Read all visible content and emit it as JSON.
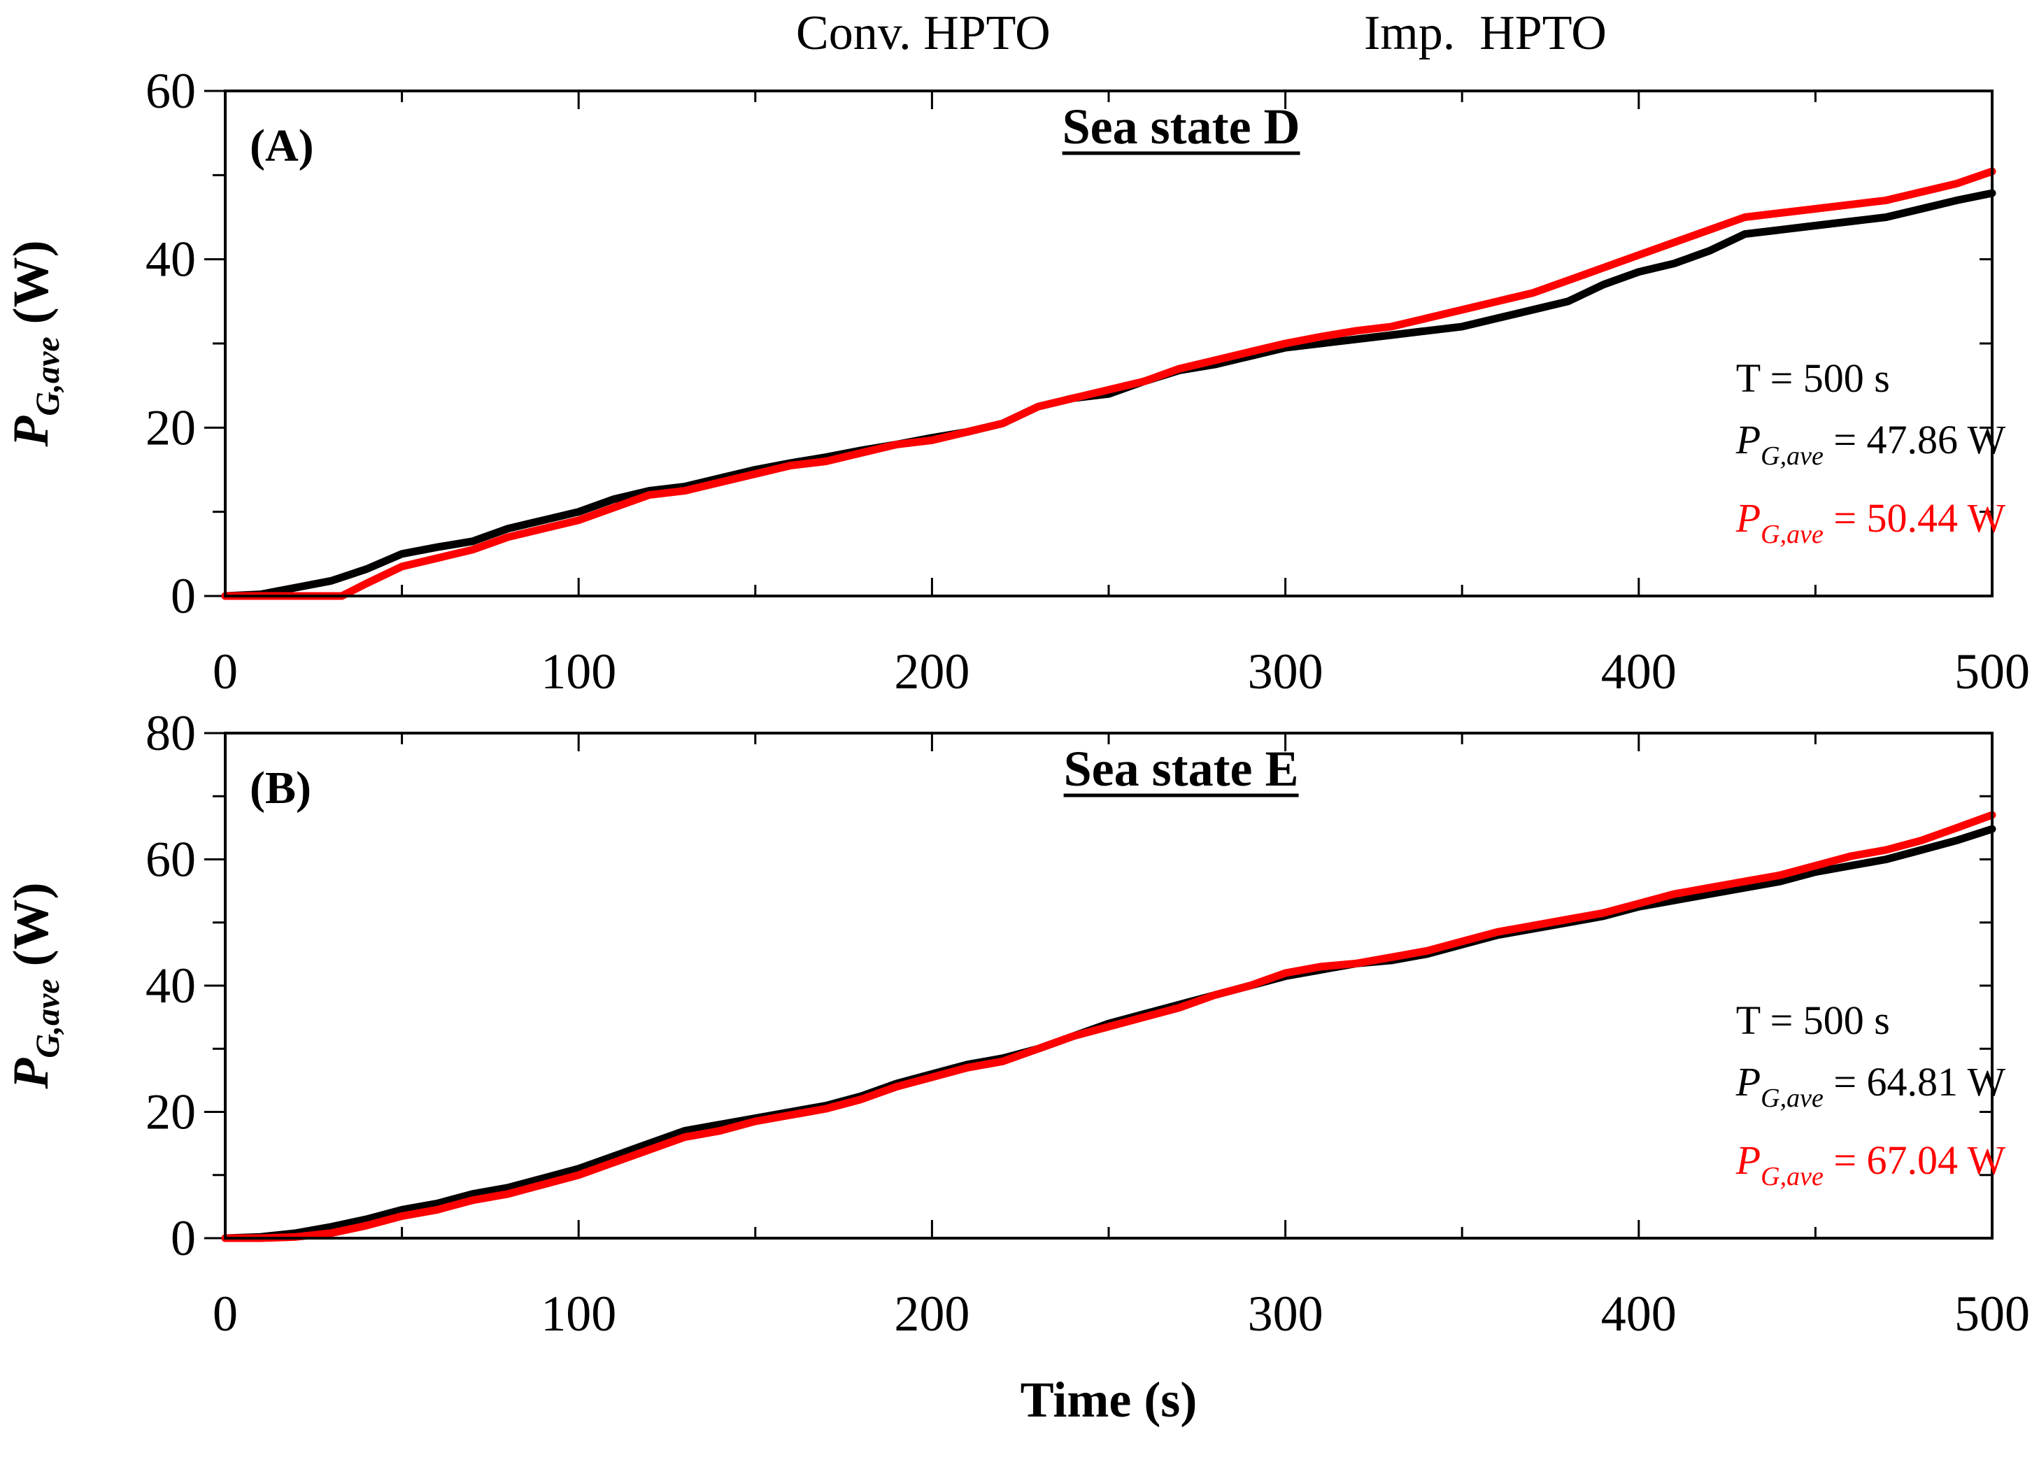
{
  "legend": {
    "conv_label": "Conv. HPTO",
    "imp_label": "Imp.  HPTO"
  },
  "colors": {
    "conv": "#000000",
    "imp": "#ff0000"
  },
  "shared": {
    "xlabel": "Time (s)",
    "ylabel_main": "P",
    "ylabel_sub": "G,ave",
    "ylabel_unit": " (W)"
  },
  "chart_data": [
    {
      "type": "line",
      "panel_label": "(A)",
      "title": "Sea state D",
      "xlim": [
        0,
        500
      ],
      "ylim": [
        0,
        60
      ],
      "xticks": [
        0,
        100,
        200,
        300,
        400,
        500
      ],
      "yticks": [
        0,
        20,
        40,
        60
      ],
      "annotation": {
        "period": "T = 500 s",
        "conv_symbol": "P",
        "conv_sub": "G,ave",
        "conv_value": " = 47.86 W",
        "imp_symbol": "P",
        "imp_sub": "G,ave",
        "imp_value": " = 50.44 W"
      },
      "series": [
        {
          "name": "Conv. HPTO",
          "x": [
            0,
            10,
            20,
            30,
            40,
            50,
            60,
            70,
            80,
            90,
            100,
            110,
            120,
            130,
            140,
            150,
            160,
            170,
            180,
            190,
            200,
            210,
            220,
            230,
            240,
            250,
            260,
            270,
            280,
            290,
            300,
            310,
            320,
            330,
            340,
            350,
            360,
            370,
            380,
            390,
            400,
            410,
            420,
            430,
            440,
            450,
            460,
            470,
            480,
            490,
            500
          ],
          "values": [
            0,
            0.2,
            1.0,
            1.8,
            3.2,
            5.0,
            5.8,
            6.5,
            8.0,
            9.0,
            10.0,
            11.5,
            12.5,
            13.0,
            14.0,
            15.0,
            15.8,
            16.5,
            17.3,
            18.0,
            18.8,
            19.5,
            20.5,
            22.5,
            23.5,
            24.0,
            25.5,
            26.8,
            27.5,
            28.5,
            29.5,
            30.0,
            30.5,
            31.0,
            31.5,
            32.0,
            33.0,
            34.0,
            35.0,
            37.0,
            38.5,
            39.5,
            41.0,
            43.0,
            43.5,
            44.0,
            44.5,
            45.0,
            46.0,
            47.0,
            47.86
          ]
        },
        {
          "name": "Imp. HPTO",
          "x": [
            0,
            10,
            20,
            30,
            33,
            40,
            50,
            60,
            70,
            80,
            90,
            100,
            110,
            120,
            130,
            140,
            150,
            160,
            170,
            180,
            190,
            200,
            210,
            220,
            230,
            240,
            250,
            260,
            270,
            280,
            290,
            300,
            310,
            320,
            330,
            340,
            350,
            360,
            370,
            380,
            390,
            400,
            410,
            420,
            430,
            440,
            450,
            460,
            470,
            480,
            490,
            500
          ],
          "values": [
            0,
            0,
            0,
            0,
            0,
            1.5,
            3.5,
            4.5,
            5.5,
            7.0,
            8.0,
            9.0,
            10.5,
            12.0,
            12.5,
            13.5,
            14.5,
            15.5,
            16.0,
            17.0,
            18.0,
            18.5,
            19.5,
            20.5,
            22.5,
            23.5,
            24.5,
            25.5,
            27.0,
            28.0,
            29.0,
            30.0,
            30.8,
            31.5,
            32.0,
            33.0,
            34.0,
            35.0,
            36.0,
            37.5,
            39.0,
            40.5,
            42.0,
            43.5,
            45.0,
            45.5,
            46.0,
            46.5,
            47.0,
            48.0,
            49.0,
            50.44
          ]
        }
      ]
    },
    {
      "type": "line",
      "panel_label": "(B)",
      "title": "Sea state E",
      "xlim": [
        0,
        500
      ],
      "ylim": [
        0,
        80
      ],
      "xticks": [
        0,
        100,
        200,
        300,
        400,
        500
      ],
      "yticks": [
        0,
        20,
        40,
        60,
        80
      ],
      "xlabel": "Time (s)",
      "annotation": {
        "period": "T = 500 s",
        "conv_symbol": "P",
        "conv_sub": "G,ave",
        "conv_value": " = 64.81 W",
        "imp_symbol": "P",
        "imp_sub": "G,ave",
        "imp_value": " = 67.04 W"
      },
      "series": [
        {
          "name": "Conv. HPTO",
          "x": [
            0,
            10,
            20,
            30,
            40,
            50,
            60,
            70,
            80,
            90,
            100,
            110,
            120,
            130,
            140,
            150,
            160,
            170,
            180,
            190,
            200,
            210,
            220,
            230,
            240,
            250,
            260,
            270,
            280,
            290,
            300,
            310,
            320,
            330,
            340,
            350,
            360,
            370,
            380,
            390,
            400,
            410,
            420,
            430,
            440,
            450,
            460,
            470,
            480,
            490,
            500
          ],
          "values": [
            0,
            0.2,
            0.8,
            1.8,
            3.0,
            4.5,
            5.5,
            7.0,
            8.0,
            9.5,
            11.0,
            13.0,
            15.0,
            17.0,
            18.0,
            19.0,
            20.0,
            21.0,
            22.5,
            24.5,
            26.0,
            27.5,
            28.5,
            30.0,
            32.0,
            34.0,
            35.5,
            37.0,
            38.5,
            40.0,
            41.5,
            42.5,
            43.5,
            44.0,
            45.0,
            46.5,
            48.0,
            49.0,
            50.0,
            51.0,
            52.5,
            53.5,
            54.5,
            55.5,
            56.5,
            58.0,
            59.0,
            60.0,
            61.5,
            63.0,
            64.81
          ]
        },
        {
          "name": "Imp. HPTO",
          "x": [
            0,
            10,
            20,
            30,
            40,
            50,
            60,
            70,
            80,
            90,
            100,
            110,
            120,
            130,
            140,
            150,
            160,
            170,
            180,
            190,
            200,
            210,
            220,
            230,
            240,
            250,
            260,
            270,
            280,
            290,
            300,
            310,
            320,
            330,
            340,
            350,
            360,
            370,
            380,
            390,
            400,
            410,
            420,
            430,
            440,
            450,
            460,
            470,
            480,
            490,
            500
          ],
          "values": [
            0,
            0,
            0.2,
            0.8,
            2.0,
            3.5,
            4.5,
            6.0,
            7.0,
            8.5,
            10.0,
            12.0,
            14.0,
            16.0,
            17.0,
            18.5,
            19.5,
            20.5,
            22.0,
            24.0,
            25.5,
            27.0,
            28.0,
            30.0,
            32.0,
            33.5,
            35.0,
            36.5,
            38.5,
            40.0,
            42.0,
            43.0,
            43.5,
            44.5,
            45.5,
            47.0,
            48.5,
            49.5,
            50.5,
            51.5,
            53.0,
            54.5,
            55.5,
            56.5,
            57.5,
            59.0,
            60.5,
            61.5,
            63.0,
            65.0,
            67.04
          ]
        }
      ]
    }
  ]
}
